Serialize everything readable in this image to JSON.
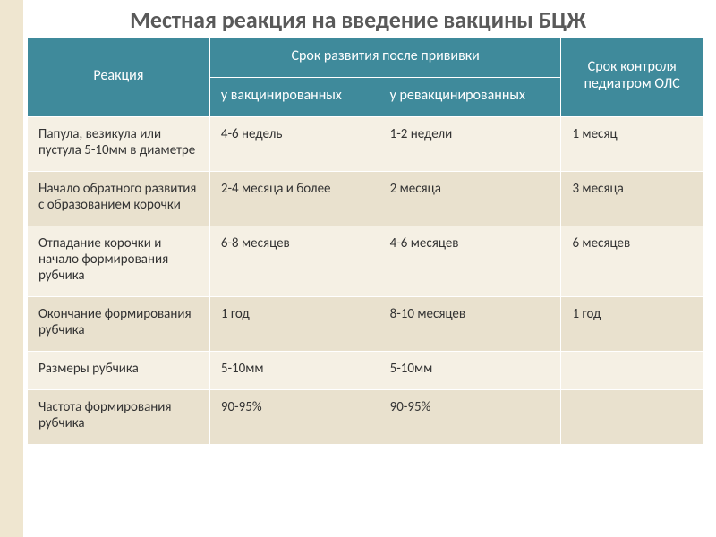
{
  "slide": {
    "title": "Местная реакция на введение вакцины БЦЖ",
    "title_fontsize": 26,
    "title_color": "#595959",
    "background": "#ffffff",
    "left_strip_color": "#efe6d0"
  },
  "table": {
    "header_bg": "#3f8a9b",
    "header_color": "#ffffff",
    "header_fontsize": 16,
    "row_light_bg": "#f5f0e4",
    "row_dark_bg": "#e9e1ce",
    "cell_color": "#333333",
    "cell_fontsize": 15,
    "border_color": "#ffffff",
    "columns": {
      "reaction": "Реакция",
      "timeline": "Срок развития после прививки",
      "timeline_sub1": "у вакцинированных",
      "timeline_sub2": "у ревакцинированных",
      "control": "Срок контроля педиатром ОЛС"
    },
    "rows": [
      {
        "reaction": "Папула, везикула или пустула 5-10мм в диаметре",
        "vac": "4-6 недель",
        "revac": "1-2 недели",
        "control": "1 месяц"
      },
      {
        "reaction": "Начало обратного развития с образованием корочки",
        "vac": "2-4 месяца и более",
        "revac": "2 месяца",
        "control": "3 месяца"
      },
      {
        "reaction": "Отпадание корочки и начало формирования рубчика",
        "vac": "6-8 месяцев",
        "revac": "4-6 месяцев",
        "control": "6 месяцев"
      },
      {
        "reaction": "Окончание формирования рубчика",
        "vac": "1 год",
        "revac": "8-10 месяцев",
        "control": "1 год"
      },
      {
        "reaction": "Размеры рубчика",
        "vac": "5-10мм",
        "revac": "5-10мм",
        "control": ""
      },
      {
        "reaction": "Частота формирования рубчика",
        "vac": "90-95%",
        "revac": "90-95%",
        "control": ""
      }
    ]
  }
}
